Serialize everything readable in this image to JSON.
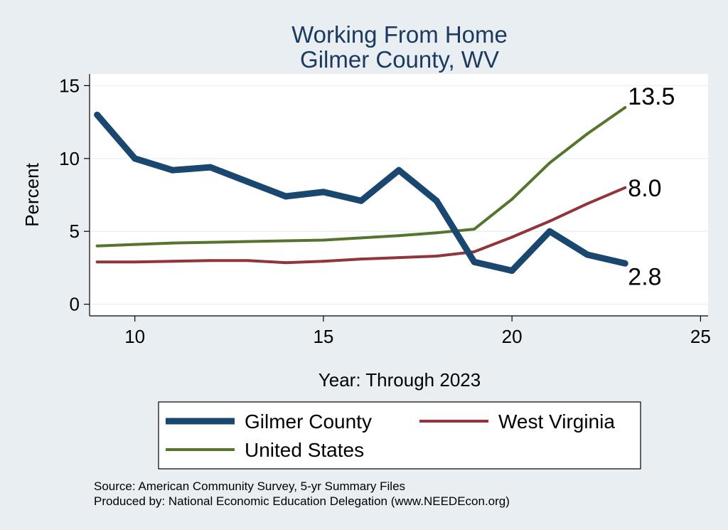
{
  "chart_data": {
    "type": "line",
    "title": [
      "Working From Home",
      "Gilmer County, WV"
    ],
    "xlabel": "Year: Through 2023",
    "ylabel": "Percent",
    "xlim": [
      8.8,
      25.2
    ],
    "ylim": [
      -0.8,
      15.8
    ],
    "xticks": [
      10,
      15,
      20,
      25
    ],
    "yticks": [
      0,
      5,
      10,
      15
    ],
    "grid": "horizontal",
    "legend_position": "bottom",
    "series": [
      {
        "name": "Gilmer County",
        "color": "#1a476f",
        "width": 9,
        "x": [
          9,
          10,
          11,
          12,
          13,
          14,
          15,
          16,
          17,
          18,
          19,
          20,
          21,
          22,
          23
        ],
        "values": [
          13.0,
          10.0,
          9.2,
          9.4,
          8.4,
          7.4,
          7.7,
          7.1,
          9.2,
          7.1,
          2.9,
          2.3,
          5.0,
          3.4,
          2.8
        ],
        "end_label": "2.8"
      },
      {
        "name": "West Virginia",
        "color": "#90353b",
        "width": 4,
        "x": [
          9,
          10,
          11,
          12,
          13,
          14,
          15,
          16,
          17,
          18,
          19,
          20,
          21,
          22,
          23
        ],
        "values": [
          2.9,
          2.9,
          2.95,
          3.0,
          3.0,
          2.85,
          2.95,
          3.1,
          3.2,
          3.3,
          3.6,
          4.6,
          5.7,
          6.9,
          8.0
        ],
        "end_label": "8.0"
      },
      {
        "name": "United States",
        "color": "#55752f",
        "width": 4,
        "x": [
          9,
          10,
          11,
          12,
          13,
          14,
          15,
          16,
          17,
          18,
          19,
          20,
          21,
          22,
          23
        ],
        "values": [
          4.0,
          4.1,
          4.2,
          4.25,
          4.3,
          4.35,
          4.4,
          4.55,
          4.7,
          4.9,
          5.15,
          7.2,
          9.7,
          11.7,
          13.5
        ],
        "end_label": "13.5"
      }
    ]
  },
  "source_lines": [
    "Source: American Community Survey, 5-yr Summary Files",
    "Produced by: National Economic Education Delegation (www.NEEDEcon.org)"
  ]
}
